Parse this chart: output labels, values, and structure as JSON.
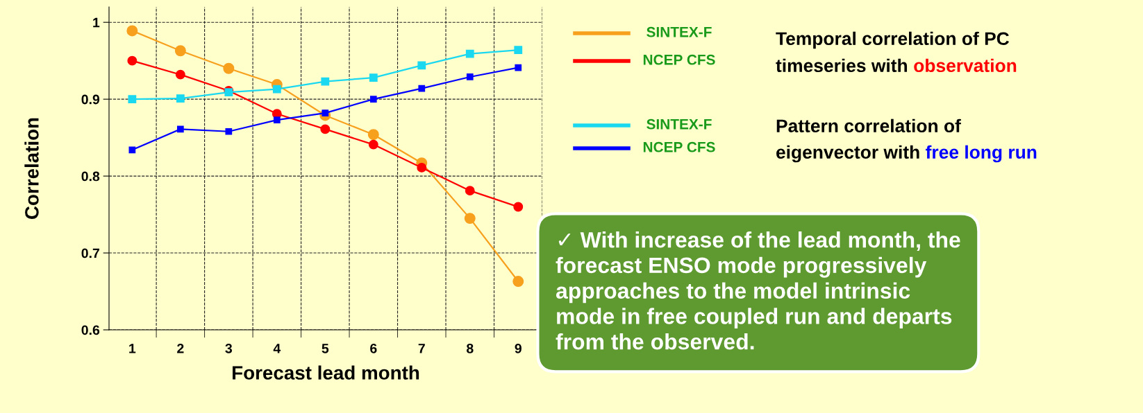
{
  "chart_data": {
    "type": "line",
    "xlabel": "Forecast lead month",
    "ylabel": "Correlation",
    "categories": [
      "1",
      "2",
      "3",
      "4",
      "5",
      "6",
      "7",
      "8",
      "9"
    ],
    "series": [
      {
        "name": "SINTEX-F",
        "color": "#f7a01e",
        "marker": "circle",
        "values": [
          0.989,
          0.963,
          0.94,
          0.919,
          0.879,
          0.854,
          0.817,
          0.745,
          0.663
        ]
      },
      {
        "name": "NCEP CFS",
        "color": "#ff0000",
        "marker": "circle",
        "values": [
          0.95,
          0.932,
          0.911,
          0.881,
          0.861,
          0.841,
          0.811,
          0.781,
          0.76
        ]
      },
      {
        "name": "SINTEX-F",
        "color": "#1ad8f0",
        "marker": "square",
        "values": [
          0.9,
          0.901,
          0.909,
          0.913,
          0.923,
          0.928,
          0.944,
          0.959,
          0.964
        ]
      },
      {
        "name": "NCEP CFS",
        "color": "#0000ff",
        "marker": "square",
        "values": [
          0.834,
          0.861,
          0.858,
          0.873,
          0.882,
          0.9,
          0.914,
          0.929,
          0.941
        ]
      }
    ],
    "ylim": [
      0.6,
      1.02
    ],
    "yticks": [
      0.6,
      0.7,
      0.8,
      0.9,
      1
    ],
    "grid": true,
    "legend": "right",
    "line_style": "solid",
    "annotations": [
      "Temporal correlation of PC",
      "timeseries with ",
      "observation",
      "Pattern correlation of",
      "eigenvector with ",
      "free long run",
      "✓ With increase of the lead month, the\nforecast ENSO mode progressively\napproaches to the model intrinsic\nmode in free coupled run and departs\nfrom the observed."
    ]
  }
}
